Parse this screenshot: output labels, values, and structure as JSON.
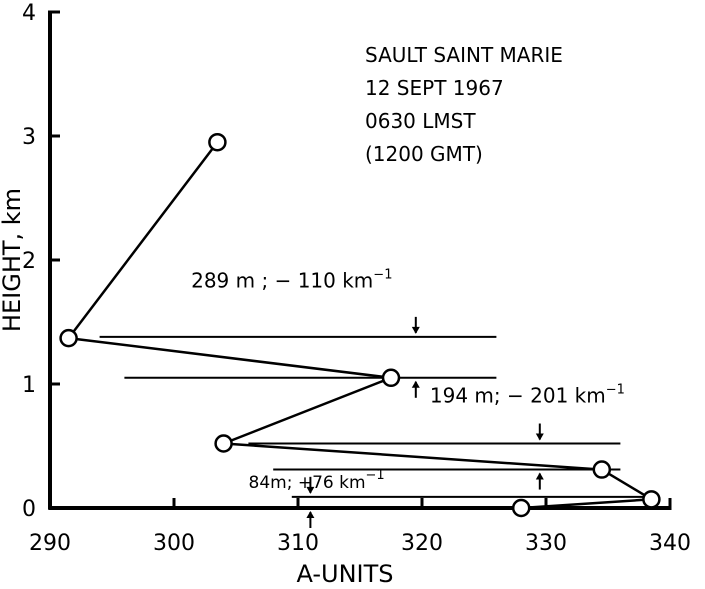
{
  "chart_data": {
    "type": "line",
    "title_lines": [
      "SAULT  SAINT  MARIE",
      "12  SEPT  1967",
      "0630  LMST",
      "(1200  GMT)"
    ],
    "xlabel": "A-UNITS",
    "ylabel": "HEIGHT, km",
    "xlim": [
      290,
      340
    ],
    "ylim": [
      0,
      4
    ],
    "x_ticks": [
      290,
      300,
      310,
      320,
      330,
      340
    ],
    "y_ticks": [
      0,
      1,
      2,
      3,
      4
    ],
    "x_tick_labels": [
      "290",
      "300",
      "310",
      "320",
      "330",
      "340"
    ],
    "y_tick_labels": [
      "0",
      "1",
      "2",
      "3",
      "4"
    ],
    "grid": false,
    "series": [
      {
        "points": [
          {
            "x": 303.5,
            "y": 2.95
          },
          {
            "x": 291.5,
            "y": 1.37
          },
          {
            "x": 317.5,
            "y": 1.05
          },
          {
            "x": 304.0,
            "y": 0.52
          },
          {
            "x": 334.5,
            "y": 0.31
          },
          {
            "x": 338.5,
            "y": 0.07
          },
          {
            "x": 328.0,
            "y": 0.0
          }
        ]
      }
    ],
    "layers": [
      {
        "main": "289 m ; − 110",
        "unit": "km",
        "exp": "−1",
        "y_low": 1.05,
        "y_high": 1.38,
        "x_start": 294,
        "x_end": 326,
        "x_arrow": 319.5,
        "text_x": 309.5,
        "text_y": 1.78
      },
      {
        "main": "194 m; − 201",
        "unit": "km",
        "exp": "−1",
        "y_low": 0.31,
        "y_high": 0.52,
        "x_start": 306,
        "x_end": 336,
        "x_arrow": 329.5,
        "text_x": 328.5,
        "text_y": 0.85
      },
      {
        "main": "84m; +76",
        "unit": "km",
        "exp": "−1",
        "y_low": 0.0,
        "y_high": 0.09,
        "x_start": 309.5,
        "x_end": 338.5,
        "x_arrow": 311,
        "text_x": 311.5,
        "text_y": 0.16
      }
    ]
  }
}
